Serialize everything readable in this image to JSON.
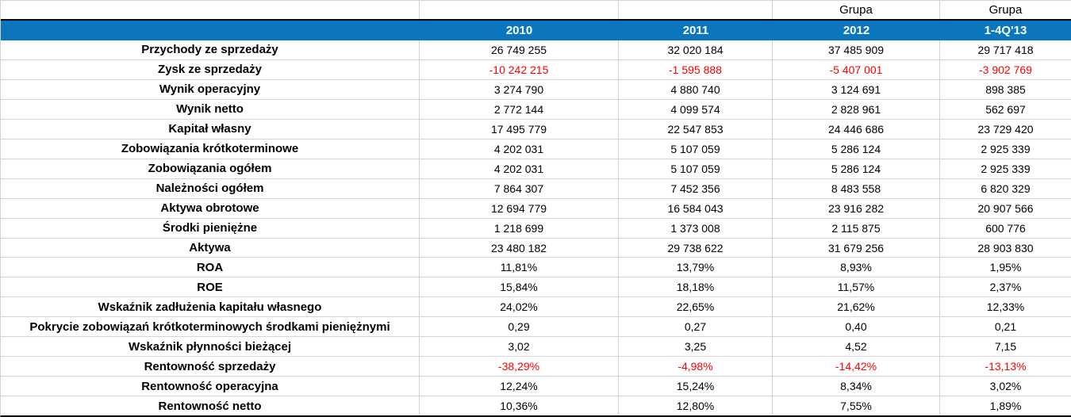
{
  "table": {
    "group_header": [
      "",
      "",
      "",
      "Grupa",
      "Grupa"
    ],
    "year_header": [
      "",
      "2010",
      "2011",
      "2012",
      "1-4Q'13"
    ],
    "rows": [
      {
        "label": "Przychody ze sprzedaży",
        "values": [
          "26 749 255",
          "32 020 184",
          "37 485 909",
          "29 717 418"
        ],
        "negative": false
      },
      {
        "label": "Zysk ze sprzedaży",
        "values": [
          "-10 242 215",
          "-1 595 888",
          "-5 407 001",
          "-3 902 769"
        ],
        "negative": true
      },
      {
        "label": "Wynik operacyjny",
        "values": [
          "3 274 790",
          "4 880 740",
          "3 124 691",
          "898 385"
        ],
        "negative": false
      },
      {
        "label": "Wynik netto",
        "values": [
          "2 772 144",
          "4 099 574",
          "2 828 961",
          "562 697"
        ],
        "negative": false
      },
      {
        "label": "Kapitał własny",
        "values": [
          "17 495 779",
          "22 547 853",
          "24 446 686",
          "23 729 420"
        ],
        "negative": false
      },
      {
        "label": "Zobowiązania krótkoterminowe",
        "values": [
          "4 202 031",
          "5 107 059",
          "5 286 124",
          "2 925 339"
        ],
        "negative": false
      },
      {
        "label": "Zobowiązania ogółem",
        "values": [
          "4 202 031",
          "5 107 059",
          "5 286 124",
          "2 925 339"
        ],
        "negative": false
      },
      {
        "label": "Należności ogółem",
        "values": [
          "7 864 307",
          "7 452 356",
          "8 483 558",
          "6 820 329"
        ],
        "negative": false
      },
      {
        "label": "Aktywa obrotowe",
        "values": [
          "12 694 779",
          "16 584 043",
          "23 916 282",
          "20 907 566"
        ],
        "negative": false
      },
      {
        "label": "Środki pieniężne",
        "values": [
          "1 218 699",
          "1 373 008",
          "2 115 875",
          "600 776"
        ],
        "negative": false
      },
      {
        "label": "Aktywa",
        "values": [
          "23 480 182",
          "29 738 622",
          "31 679 256",
          "28 903 830"
        ],
        "negative": false
      },
      {
        "label": "ROA",
        "values": [
          "11,81%",
          "13,79%",
          "8,93%",
          "1,95%"
        ],
        "negative": false
      },
      {
        "label": "ROE",
        "values": [
          "15,84%",
          "18,18%",
          "11,57%",
          "2,37%"
        ],
        "negative": false
      },
      {
        "label": "Wskaźnik zadłużenia kapitału własnego",
        "values": [
          "24,02%",
          "22,65%",
          "21,62%",
          "12,33%"
        ],
        "negative": false
      },
      {
        "label": "Pokrycie zobowiązań krótkoterminowych środkami pieniężnymi",
        "values": [
          "0,29",
          "0,27",
          "0,40",
          "0,21"
        ],
        "negative": false
      },
      {
        "label": "Wskaźnik płynności bieżącej",
        "values": [
          "3,02",
          "3,25",
          "4,52",
          "7,15"
        ],
        "negative": false
      },
      {
        "label": "Rentowność sprzedaży",
        "values": [
          "-38,29%",
          "-4,98%",
          "-14,42%",
          "-13,13%"
        ],
        "negative": true
      },
      {
        "label": "Rentowność operacyjna",
        "values": [
          "12,24%",
          "15,24%",
          "8,34%",
          "3,02%"
        ],
        "negative": false
      },
      {
        "label": "Rentowność netto",
        "values": [
          "10,36%",
          "12,80%",
          "7,55%",
          "1,89%"
        ],
        "negative": false
      }
    ],
    "colors": {
      "header_bg": "#0A76BE",
      "header_text": "#FFFFFF",
      "text": "#000000",
      "negative": "#FF0000",
      "gridline": "#D4D4D4",
      "strong_border": "#000000"
    }
  }
}
